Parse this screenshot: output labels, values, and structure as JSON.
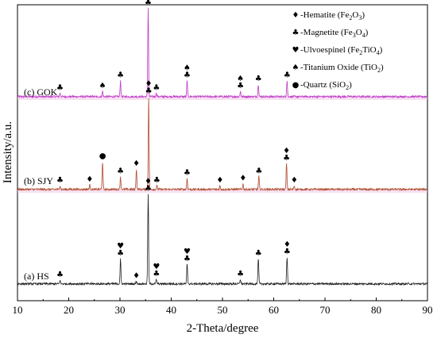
{
  "chart_data": {
    "type": "line",
    "xlabel": "2-Theta/degree",
    "ylabel": "Intensity/a.u.",
    "xlim": [
      10,
      90
    ],
    "x_ticks": [
      "10",
      "20",
      "30",
      "40",
      "50",
      "60",
      "70",
      "80",
      "90"
    ],
    "grid": false,
    "legend": {
      "placement": "top-right",
      "entries": [
        {
          "symbol": "diamond",
          "glyph": "♦",
          "prefix": "-Hematite (Fe",
          "parts": [
            "2",
            "O",
            "3",
            ")"
          ]
        },
        {
          "symbol": "club",
          "glyph": "♣",
          "prefix": "-Magnetite (Fe",
          "parts": [
            "3",
            "O",
            "4",
            ")"
          ]
        },
        {
          "symbol": "heart",
          "glyph": "♥",
          "prefix": "-Ulvoespinel (Fe",
          "parts": [
            "2",
            "TiO",
            "4",
            ")"
          ]
        },
        {
          "symbol": "spade",
          "glyph": "♠",
          "prefix": "-Titanium Oxide (TiO",
          "parts": [
            "2",
            ")"
          ]
        },
        {
          "symbol": "dot",
          "glyph": "●",
          "prefix": "-Quartz (SiO",
          "parts": [
            "2",
            ")"
          ]
        }
      ]
    },
    "series": [
      {
        "name": "(c) GOK",
        "color": "#c040c8",
        "baseline": 20,
        "peaks": [
          {
            "x": 18.3,
            "h": 4,
            "markers": [
              "club"
            ]
          },
          {
            "x": 26.6,
            "h": 6,
            "markers": [
              "spade"
            ]
          },
          {
            "x": 30.1,
            "h": 18,
            "markers": [
              "club"
            ]
          },
          {
            "x": 35.5,
            "h": 100,
            "markers": [
              "club",
              "spade"
            ]
          },
          {
            "x": 37.1,
            "h": 4,
            "markers": [
              "club"
            ]
          },
          {
            "x": 43.1,
            "h": 18,
            "markers": [
              "club",
              "spade"
            ]
          },
          {
            "x": 53.5,
            "h": 6,
            "markers": [
              "club",
              "spade"
            ]
          },
          {
            "x": 57.0,
            "h": 14,
            "markers": [
              "club"
            ]
          },
          {
            "x": 62.6,
            "h": 18,
            "markers": [
              "club"
            ]
          }
        ]
      },
      {
        "name": "(b) SJY",
        "color": "#b05030",
        "baseline": 20,
        "peaks": [
          {
            "x": 18.3,
            "h": 4,
            "markers": [
              "club"
            ]
          },
          {
            "x": 24.1,
            "h": 5,
            "markers": [
              "diamond"
            ]
          },
          {
            "x": 26.6,
            "h": 30,
            "markers": [
              "dot"
            ]
          },
          {
            "x": 30.1,
            "h": 14,
            "markers": [
              "club"
            ]
          },
          {
            "x": 33.2,
            "h": 22,
            "markers": [
              "diamond"
            ]
          },
          {
            "x": 35.6,
            "h": 100,
            "markers": [
              "club",
              "diamond"
            ]
          },
          {
            "x": 37.2,
            "h": 4,
            "markers": [
              "club"
            ]
          },
          {
            "x": 43.1,
            "h": 12,
            "markers": [
              "club"
            ]
          },
          {
            "x": 49.5,
            "h": 4,
            "markers": [
              "diamond"
            ]
          },
          {
            "x": 54.0,
            "h": 6,
            "markers": [
              "diamond"
            ]
          },
          {
            "x": 57.1,
            "h": 14,
            "markers": [
              "club"
            ]
          },
          {
            "x": 62.5,
            "h": 28,
            "markers": [
              "club",
              "diamond"
            ]
          },
          {
            "x": 64.0,
            "h": 4,
            "markers": [
              "diamond"
            ]
          }
        ]
      },
      {
        "name": "(a) HS",
        "color": "#222222",
        "baseline": 20,
        "peaks": [
          {
            "x": 18.3,
            "h": 4,
            "markers": [
              "club"
            ]
          },
          {
            "x": 30.1,
            "h": 28,
            "markers": [
              "club",
              "heart"
            ]
          },
          {
            "x": 33.2,
            "h": 3,
            "markers": [
              "diamond"
            ]
          },
          {
            "x": 35.5,
            "h": 100,
            "markers": [
              "club",
              "diamond"
            ]
          },
          {
            "x": 37.1,
            "h": 5,
            "markers": [
              "club",
              "heart"
            ]
          },
          {
            "x": 43.1,
            "h": 22,
            "markers": [
              "club",
              "heart"
            ]
          },
          {
            "x": 53.5,
            "h": 5,
            "markers": [
              "club"
            ]
          },
          {
            "x": 57.0,
            "h": 28,
            "markers": [
              "club"
            ]
          },
          {
            "x": 62.6,
            "h": 30,
            "markers": [
              "club",
              "diamond"
            ]
          }
        ]
      }
    ]
  }
}
